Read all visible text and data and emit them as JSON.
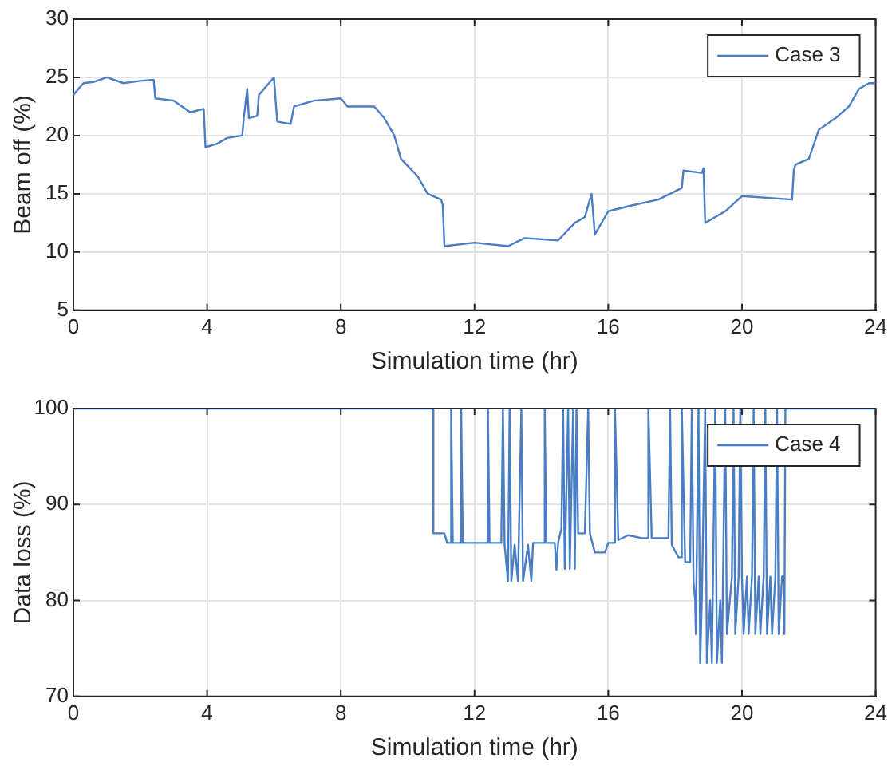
{
  "chart_data": [
    {
      "type": "line",
      "xlabel": "Simulation time (hr)",
      "ylabel": "Beam off (%)",
      "xlim": [
        0,
        24
      ],
      "xticks": [
        0,
        4,
        8,
        12,
        16,
        20,
        24
      ],
      "ylim": [
        5,
        30
      ],
      "yticks": [
        5,
        10,
        15,
        20,
        25,
        30
      ],
      "grid": true,
      "legend": "top right",
      "marker": "none",
      "line_style": "solid",
      "series": [
        {
          "name": "Case 3",
          "color": "#4a7ec4",
          "x": [
            0,
            0.3,
            0.6,
            1,
            1.5,
            2,
            2.4,
            2.45,
            3,
            3.5,
            3.9,
            3.95,
            4.3,
            4.6,
            5.05,
            5.1,
            5.2,
            5.25,
            5.5,
            5.55,
            6,
            6.05,
            6.1,
            6.5,
            6.6,
            7.2,
            8,
            8.2,
            9,
            9.3,
            9.6,
            9.8,
            10.3,
            10.6,
            11,
            11.05,
            11.1,
            12,
            13,
            13.5,
            14.5,
            15,
            15.3,
            15.5,
            15.6,
            15.7,
            16,
            16.7,
            17.5,
            18.2,
            18.25,
            18.8,
            18.85,
            18.9,
            19.5,
            20,
            21.5,
            21.55,
            21.6,
            22,
            22.3,
            22.8,
            23.2,
            23.5,
            23.8,
            24
          ],
          "values": [
            23.5,
            24.5,
            24.6,
            25,
            24.5,
            24.7,
            24.8,
            23.2,
            23,
            22,
            22.3,
            19,
            19.3,
            19.8,
            20,
            21.6,
            24,
            21.5,
            21.7,
            23.5,
            25,
            23,
            21.2,
            21,
            22.5,
            23,
            23.2,
            22.5,
            22.5,
            21.5,
            20,
            18,
            16.5,
            15,
            14.5,
            14,
            10.5,
            10.8,
            10.5,
            11.2,
            11,
            12.5,
            13,
            15,
            11.5,
            12,
            13.5,
            14,
            14.5,
            15.5,
            17,
            16.8,
            17.2,
            12.5,
            13.5,
            14.8,
            14.5,
            17,
            17.5,
            18,
            20.5,
            21.5,
            22.5,
            24,
            24.5,
            24.5
          ]
        }
      ]
    },
    {
      "type": "line",
      "xlabel": "Simulation time (hr)",
      "ylabel": "Data loss (%)",
      "xlim": [
        0,
        24
      ],
      "xticks": [
        0,
        4,
        8,
        12,
        16,
        20,
        24
      ],
      "ylim": [
        70,
        100
      ],
      "yticks": [
        70,
        80,
        90,
        100
      ],
      "grid": true,
      "legend": "top right",
      "marker": "none",
      "line_style": "solid",
      "series": [
        {
          "name": "Case 4",
          "color": "#4a7ec4",
          "x": [
            0,
            10.77,
            10.77,
            11.1,
            11.18,
            11.3,
            11.3,
            11.35,
            11.6,
            11.6,
            11.65,
            12,
            12.4,
            12.4,
            12.45,
            12.8,
            12.85,
            12.9,
            13,
            13.05,
            13.1,
            13.2,
            13.3,
            13.4,
            13.45,
            13.6,
            13.7,
            13.75,
            14.1,
            14.1,
            14.15,
            14.4,
            14.45,
            14.5,
            14.6,
            14.65,
            14.7,
            14.8,
            14.85,
            14.95,
            15,
            15.05,
            15.1,
            15.3,
            15.4,
            15.45,
            15.6,
            15.9,
            16,
            16.2,
            16.2,
            16.3,
            16.6,
            17,
            17.2,
            17.2,
            17.3,
            17.8,
            17.85,
            17.9,
            18.1,
            18.2,
            18.2,
            18.3,
            18.45,
            18.5,
            18.55,
            18.6,
            18.62,
            18.7,
            18.75,
            18.8,
            18.9,
            18.95,
            19.05,
            19.1,
            19.2,
            19.25,
            19.35,
            19.4,
            19.5,
            19.55,
            19.7,
            19.75,
            19.8,
            19.9,
            19.95,
            20,
            20.05,
            20.15,
            20.2,
            20.3,
            20.35,
            20.4,
            20.5,
            20.55,
            20.65,
            20.7,
            20.75,
            20.85,
            20.9,
            21,
            21.05,
            21.1,
            21.2,
            21.27,
            21.27,
            21.3,
            24
          ],
          "values": [
            100,
            100,
            87,
            87,
            86,
            86,
            100,
            86,
            86,
            100,
            86,
            86,
            86,
            100,
            86,
            86,
            100,
            85.8,
            82,
            100,
            82,
            85.8,
            82,
            100,
            82,
            85.8,
            82,
            86,
            86,
            100,
            86,
            86,
            83.2,
            86,
            87.5,
            100,
            83.3,
            100,
            83.3,
            100,
            83.3,
            100,
            87,
            87,
            100,
            87,
            85,
            85,
            86,
            86,
            100,
            86.3,
            86.8,
            86.5,
            86.5,
            100,
            86.5,
            86.5,
            100,
            85.8,
            84.5,
            84.5,
            100,
            84,
            84,
            100,
            82,
            80,
            76.5,
            100,
            73.5,
            80.2,
            100,
            73.5,
            80,
            73.5,
            100,
            73.5,
            80,
            73.5,
            100,
            76.5,
            82.5,
            100,
            76.5,
            82.5,
            100,
            82.5,
            76.5,
            82.5,
            76.5,
            82.5,
            100,
            76.5,
            82.5,
            76.5,
            82.5,
            100,
            76.5,
            82.5,
            76.5,
            82.5,
            100,
            76.5,
            82.5,
            82.5,
            76.5,
            100,
            100
          ]
        }
      ]
    }
  ]
}
